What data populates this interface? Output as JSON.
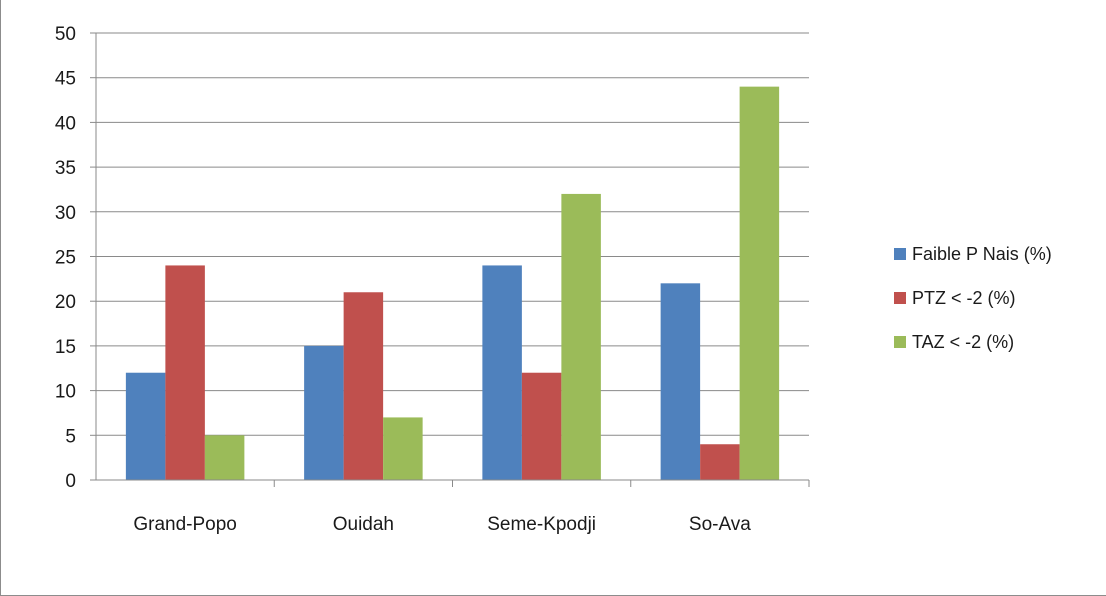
{
  "chart_data": {
    "type": "bar",
    "categories": [
      "Grand-Popo",
      "Ouidah",
      "Seme-Kpodji",
      "So-Ava"
    ],
    "series": [
      {
        "name": "Faible P Nais (%)",
        "values": [
          12,
          15,
          24,
          22
        ],
        "color": "#4f81bd"
      },
      {
        "name": "PTZ < -2 (%)",
        "values": [
          24,
          21,
          12,
          4
        ],
        "color": "#c0504d"
      },
      {
        "name": "TAZ < -2 (%)",
        "values": [
          5,
          7,
          32,
          44
        ],
        "color": "#9bbb59"
      }
    ],
    "title": "",
    "xlabel": "",
    "ylabel": "",
    "ylim": [
      0,
      50
    ],
    "yticks": [
      0,
      5,
      10,
      15,
      20,
      25,
      30,
      35,
      40,
      45,
      50
    ],
    "grid": true,
    "legend_position": "right"
  }
}
